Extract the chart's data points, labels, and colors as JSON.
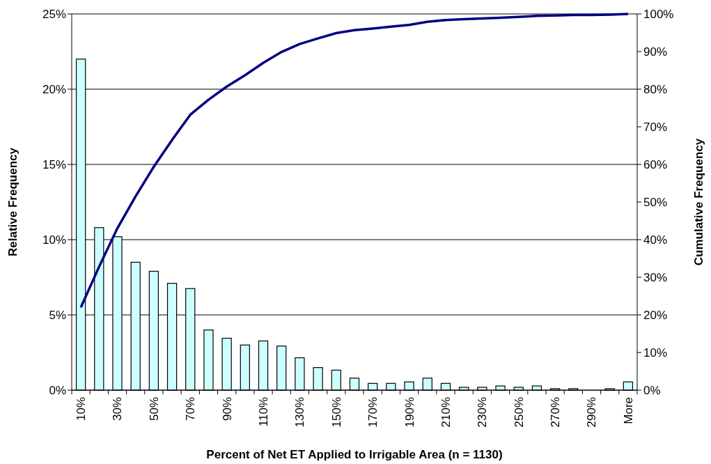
{
  "chart_data": {
    "type": "bar",
    "xlabel": "Percent of Net ET Applied to Irrigable Area (n = 1130)",
    "ylabel": "Relative Frequency",
    "y2label": "Cumulative Frequency",
    "categories": [
      "10%",
      null,
      "30%",
      null,
      "50%",
      null,
      "70%",
      null,
      "90%",
      null,
      "110%",
      null,
      "130%",
      null,
      "150%",
      null,
      "170%",
      null,
      "190%",
      null,
      "210%",
      null,
      "230%",
      null,
      "250%",
      null,
      "270%",
      null,
      "290%",
      null,
      "More"
    ],
    "series": [
      {
        "color": "#ccffff",
        "values": [
          22,
          10.8,
          10.2,
          8.5,
          7.9,
          7.1,
          6.75,
          4,
          3.45,
          3,
          3.27,
          2.93,
          2.15,
          1.5,
          1.33,
          0.8,
          0.45,
          0.45,
          0.55,
          0.8,
          0.45,
          0.19,
          0.19,
          0.28,
          0.19,
          0.28,
          0.1,
          0.1,
          0,
          0.1,
          0.55
        ]
      },
      {
        "type": "line",
        "axis": "y2",
        "color": "#000080",
        "values": [
          22,
          32.8,
          43,
          51.5,
          59.4,
          66.5,
          73.2,
          77.2,
          80.7,
          83.7,
          87,
          89.9,
          92,
          93.5,
          94.9,
          95.7,
          96.1,
          96.6,
          97.1,
          97.9,
          98.4,
          98.6,
          98.8,
          99,
          99.2,
          99.5,
          99.6,
          99.7,
          99.7,
          99.8,
          100
        ]
      }
    ],
    "ylim": [
      0,
      25
    ],
    "yticks": [
      {
        "value": 0,
        "label": "0%"
      },
      {
        "value": 5,
        "label": "5%"
      },
      {
        "value": 10,
        "label": "10%"
      },
      {
        "value": 15,
        "label": "15%"
      },
      {
        "value": 20,
        "label": "20%"
      },
      {
        "value": 25,
        "label": "25%"
      }
    ],
    "y2lim": [
      0,
      100
    ],
    "y2ticks": [
      {
        "value": 0,
        "label": "0%"
      },
      {
        "value": 10,
        "label": "10%"
      },
      {
        "value": 20,
        "label": "20%"
      },
      {
        "value": 30,
        "label": "30%"
      },
      {
        "value": 40,
        "label": "40%"
      },
      {
        "value": 50,
        "label": "50%"
      },
      {
        "value": 60,
        "label": "60%"
      },
      {
        "value": 70,
        "label": "70%"
      },
      {
        "value": 80,
        "label": "80%"
      },
      {
        "value": 90,
        "label": "90%"
      },
      {
        "value": 100,
        "label": "100%"
      }
    ],
    "grid": "y",
    "marker": "none",
    "line_style": "solid"
  }
}
